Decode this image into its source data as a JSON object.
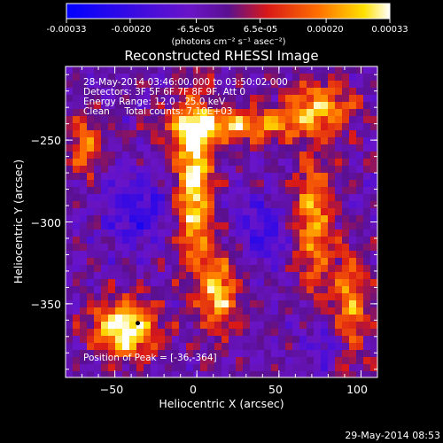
{
  "colorbar": {
    "ticks": [
      "-0.00033",
      "-0.00020",
      "-6.5e-05",
      "6.5e-05",
      "0.00020",
      "0.00033"
    ],
    "tick_values": [
      -0.00033,
      -0.0002,
      -6.5e-05,
      6.5e-05,
      0.0002,
      0.00033
    ],
    "range": [
      -0.00033,
      0.00033
    ],
    "units_label": "(photons cm⁻² s⁻¹ asec⁻²)"
  },
  "chart_data": {
    "type": "heatmap",
    "title": "Reconstructed RHESSI Image",
    "xlabel": "Heliocentric X (arcsec)",
    "ylabel": "Heliocentric Y (arcsec)",
    "xlim": [
      -80,
      110
    ],
    "ylim": [
      -395,
      -205
    ],
    "x_ticks": [
      -50,
      0,
      50,
      100
    ],
    "x_tick_labels": [
      "−50",
      "0",
      "50",
      "100"
    ],
    "y_ticks": [
      -250,
      -300,
      -350
    ],
    "y_tick_labels": [
      "−250",
      "−300",
      "−350"
    ],
    "peak_marker": [
      -36,
      -364
    ],
    "annotations": [
      "28-May-2014 03:46:00.000 to 03:50:02.000",
      "Detectors: 3F 5F 6F 7F 8F 9F, Att 0",
      "Energy Range: 12.0 - 25.0 keV",
      "Clean     Total counts: 7.10E+03",
      "Position of Peak = [-36,-364]"
    ]
  },
  "footer": {
    "timestamp": "29-May-2014 08:53"
  }
}
